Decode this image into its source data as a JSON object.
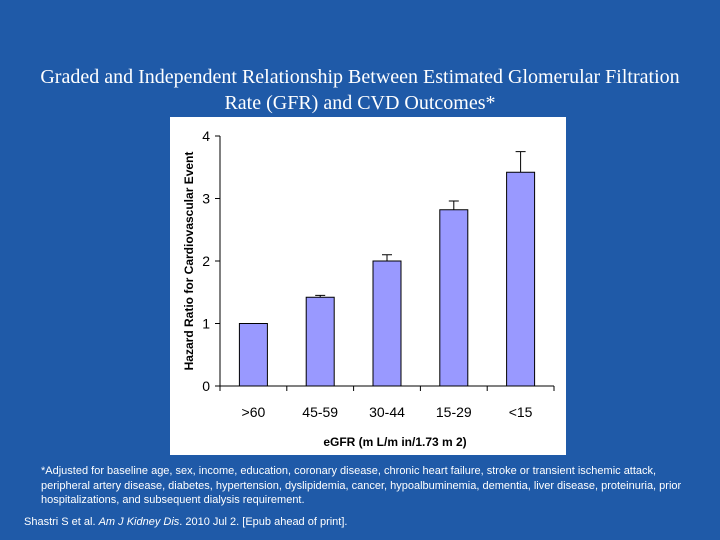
{
  "slide": {
    "title": "Graded and Independent Relationship Between Estimated Glomerular Filtration Rate (GFR) and CVD Outcomes*",
    "footnote": "*Adjusted for baseline age, sex, income, education, coronary disease, chronic heart failure, stroke or transient ischemic attack, peripheral artery disease, diabetes, hypertension, dyslipidemia, cancer, hypoalbuminemia, dementia, liver disease, proteinuria, prior hospitalizations, and subsequent dialysis requirement.",
    "citation": {
      "authors": "Shastri S et al. ",
      "journal": "Am J Kidney Dis",
      "details": ". 2010 Jul 2. [Epub ahead of print]."
    }
  },
  "colors": {
    "background": "#1f5aa8",
    "bar_fill": "#9999ff",
    "bar_stroke": "#000000",
    "text": "#ffffff"
  },
  "chart_data": {
    "type": "bar",
    "categories": [
      ">60",
      "45-59",
      "30-44",
      "15-29",
      "<15"
    ],
    "values": [
      1.0,
      1.42,
      2.0,
      2.82,
      3.42
    ],
    "error_upper": [
      null,
      1.45,
      2.1,
      2.96,
      3.75
    ],
    "xlabel": "eGFR (m L/m in/1.73 m 2)",
    "ylabel": "Hazard Ratio for Cardiovascular Event",
    "ylim": [
      0,
      4
    ],
    "yticks": [
      0,
      1,
      2,
      3,
      4
    ],
    "grid": false,
    "legend": "none"
  }
}
